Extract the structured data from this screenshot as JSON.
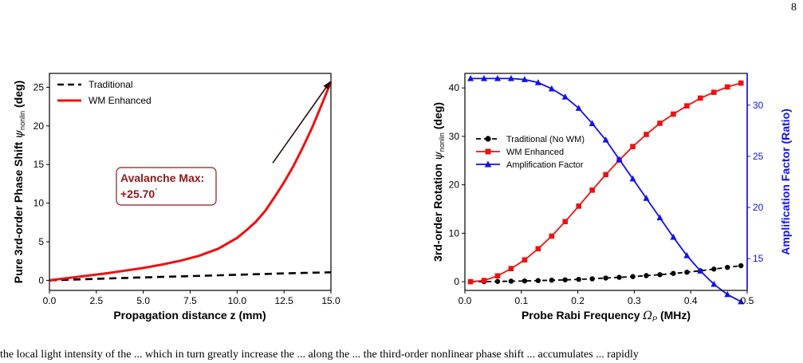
{
  "page_number": "8",
  "caption_fragment": "the local light intensity of the ... which in turn greatly increase the ... along the ... the third-order nonlinear phase shift ... accumulates ... rapidly",
  "colors": {
    "red": "#ee1111",
    "blue": "#1111ee",
    "black": "#000000",
    "annotation": "#8b1a1a"
  },
  "chart_data": [
    {
      "type": "line",
      "title": "",
      "xlabel": "Propagation distance z (mm)",
      "ylabel": "Pure 3rd-order Phase Shift",
      "ylabel_symbol": "ψ",
      "ylabel_sub": "nonlin",
      "ylabel_unit": "(deg)",
      "xlim": [
        0,
        15
      ],
      "ylim": [
        -1.3,
        26.8
      ],
      "xticks": [
        "0.0",
        "2.5",
        "5.0",
        "7.5",
        "10.0",
        "12.5",
        "15.0"
      ],
      "xtick_values": [
        0,
        2.5,
        5,
        7.5,
        10,
        12.5,
        15
      ],
      "yticks": [
        "0",
        "5",
        "10",
        "15",
        "20",
        "25"
      ],
      "ytick_values": [
        0,
        5,
        10,
        15,
        20,
        25
      ],
      "legend_position": "top-left",
      "series": [
        {
          "name": "Traditional",
          "style": "dashed",
          "color": "#000000",
          "x": [
            0,
            2.5,
            5,
            7.5,
            10,
            12.5,
            15
          ],
          "y": [
            0,
            0.2,
            0.38,
            0.55,
            0.72,
            0.9,
            1.05
          ]
        },
        {
          "name": "WM Enhanced",
          "style": "solid",
          "color": "#ee1111",
          "x": [
            0,
            1,
            2,
            3,
            4,
            5,
            6,
            7,
            8,
            9,
            10,
            10.5,
            11,
            11.5,
            12,
            12.5,
            13,
            13.5,
            14,
            14.5,
            15
          ],
          "y": [
            0,
            0.3,
            0.6,
            0.9,
            1.25,
            1.6,
            2.05,
            2.55,
            3.2,
            4.1,
            5.5,
            6.5,
            7.6,
            9.0,
            10.8,
            12.7,
            14.8,
            17.2,
            19.8,
            22.7,
            25.7
          ]
        }
      ],
      "annotation": {
        "line1": "Avalanche Max:",
        "line2": "+25.70",
        "degree": "°",
        "text_at": [
          10,
          13.1
        ],
        "arrow_from": [
          11.9,
          15.2
        ],
        "arrow_to": [
          14.95,
          25.7
        ]
      }
    },
    {
      "type": "line",
      "title": "",
      "xlabel": "Probe Rabi Frequency",
      "xlabel_symbol": "Ω",
      "xlabel_sub": "P",
      "xlabel_unit": "(MHz)",
      "ylabel": "3rd-order Rotation",
      "ylabel_symbol": "ψ",
      "ylabel_sub": "nonlin",
      "ylabel_unit": "(deg)",
      "y2label": "Amplification Factor (Ratio)",
      "xlim": [
        0,
        0.5
      ],
      "ylim": [
        -1.8,
        43.0
      ],
      "y2lim": [
        11.9,
        33.1
      ],
      "xticks": [
        "0.0",
        "0.1",
        "0.2",
        "0.3",
        "0.4",
        "0.5"
      ],
      "xtick_values": [
        0,
        0.1,
        0.2,
        0.3,
        0.4,
        0.5
      ],
      "yticks": [
        "0",
        "10",
        "20",
        "30",
        "40"
      ],
      "ytick_values": [
        0,
        10,
        20,
        30,
        40
      ],
      "y2ticks": [
        "15",
        "20",
        "25",
        "30"
      ],
      "y2tick_values": [
        15,
        20,
        25,
        30
      ],
      "legend_position": "center-left",
      "x": [
        0.01,
        0.0339,
        0.0579,
        0.0818,
        0.1058,
        0.1297,
        0.1537,
        0.1776,
        0.2016,
        0.2255,
        0.2495,
        0.2734,
        0.2974,
        0.3213,
        0.3453,
        0.3692,
        0.3932,
        0.4171,
        0.4411,
        0.465,
        0.489
      ],
      "series": [
        {
          "name": "Traditional (No WM)",
          "axis": "left",
          "color": "#000000",
          "marker": "circle",
          "style": "dashed",
          "y": [
            0,
            0.01,
            0.05,
            0.1,
            0.15,
            0.22,
            0.3,
            0.38,
            0.48,
            0.6,
            0.75,
            0.9,
            1.05,
            1.25,
            1.45,
            1.7,
            1.95,
            2.25,
            2.6,
            2.95,
            3.3
          ]
        },
        {
          "name": "WM Enhanced",
          "axis": "left",
          "color": "#ee1111",
          "marker": "square",
          "style": "solid",
          "y": [
            0,
            0.25,
            1.2,
            2.7,
            4.5,
            6.8,
            9.4,
            12.4,
            15.6,
            18.9,
            22.1,
            25.1,
            27.9,
            30.4,
            32.7,
            34.6,
            36.3,
            37.9,
            39.1,
            40.2,
            41.0
          ]
        },
        {
          "name": "Amplification Factor",
          "axis": "right",
          "color": "#1111ee",
          "marker": "triangle",
          "style": "solid",
          "y": [
            32.6,
            32.6,
            32.6,
            32.6,
            32.5,
            32.2,
            31.6,
            30.8,
            29.7,
            28.2,
            26.6,
            24.7,
            22.8,
            20.9,
            19.0,
            17.1,
            15.3,
            13.8,
            12.5,
            11.5,
            10.8
          ]
        }
      ]
    }
  ]
}
